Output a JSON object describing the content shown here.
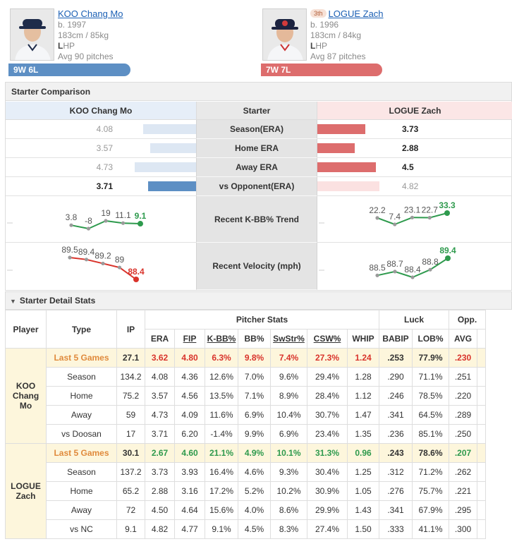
{
  "corner_link": "...)",
  "left_player": {
    "name": "KOO Chang Mo",
    "born": "b. 1997",
    "body": "183cm / 85kg",
    "hand_bold": "L",
    "hand_rest": "HP",
    "avg_pitches": "Avg 90 pitches",
    "record": "9W 6L",
    "color": "#5d8fc4"
  },
  "right_player": {
    "rank": "3th",
    "name": "LOGUE Zach",
    "born": "b. 1996",
    "body": "183cm / 84kg",
    "hand_bold": "L",
    "hand_rest": "HP",
    "avg_pitches": "Avg 87 pitches",
    "record": "7W 7L",
    "color": "#dd6d6d"
  },
  "comparison": {
    "title": "Starter Comparison",
    "left_header": "KOO Chang Mo",
    "mid_header": "Starter",
    "right_header": "LOGUE Zach",
    "rows": [
      {
        "label": "Season(ERA)",
        "left": "4.08",
        "right": "3.73",
        "left_v": 4.08,
        "right_v": 3.73,
        "winner": "right"
      },
      {
        "label": "Home ERA",
        "left": "3.57",
        "right": "2.88",
        "left_v": 3.57,
        "right_v": 2.88,
        "winner": "right"
      },
      {
        "label": "Away ERA",
        "left": "4.73",
        "right": "4.5",
        "left_v": 4.73,
        "right_v": 4.5,
        "winner": "right"
      },
      {
        "label": "vs Opponent(ERA)",
        "left": "3.71",
        "right": "4.82",
        "left_v": 3.71,
        "right_v": 4.82,
        "winner": "left"
      }
    ],
    "kbb_label": "Recent K-BB% Trend",
    "velo_label": "Recent Velocity (mph)"
  },
  "chart_data": [
    {
      "type": "line",
      "name": "KOO K-BB% trend",
      "x": [
        1,
        2,
        3,
        4,
        5
      ],
      "values": [
        3.8,
        -8,
        19,
        11.1,
        9.1
      ],
      "labels": [
        "3.8",
        "-8",
        "19",
        "11.1",
        "9.1"
      ]
    },
    {
      "type": "line",
      "name": "LOGUE K-BB% trend",
      "x": [
        1,
        2,
        3,
        4,
        5
      ],
      "values": [
        22.2,
        7.4,
        23.1,
        22.7,
        33.3
      ],
      "labels": [
        "22.2",
        "7.4",
        "23.1",
        "22.7",
        "33.3"
      ]
    },
    {
      "type": "line",
      "name": "KOO velocity",
      "x": [
        1,
        2,
        3,
        4,
        5
      ],
      "values": [
        89.5,
        89.4,
        89.2,
        89,
        88.4
      ],
      "labels": [
        "89.5",
        "89.4",
        "89.2",
        "89",
        "88.4"
      ]
    },
    {
      "type": "line",
      "name": "LOGUE velocity",
      "x": [
        1,
        2,
        3,
        4,
        5
      ],
      "values": [
        88.5,
        88.7,
        88.4,
        88.8,
        89.4
      ],
      "labels": [
        "88.5",
        "88.7",
        "88.4",
        "88.8",
        "89.4"
      ]
    }
  ],
  "detail": {
    "title": "Starter Detail Stats",
    "headers": {
      "player": "Player",
      "type": "Type",
      "ip": "IP",
      "group_pitcher": "Pitcher Stats",
      "group_luck": "Luck",
      "group_opp": "Opp.",
      "era": "ERA",
      "fip": "FIP",
      "kbb": "K-BB%",
      "bb": "BB%",
      "swstr": "SwStr%",
      "csw": "CSW%",
      "whip": "WHIP",
      "babip": "BABIP",
      "lob": "LOB%",
      "avg": "AVG"
    },
    "koo_label_1": "KOO",
    "koo_label_2": "Chang",
    "koo_label_3": "Mo",
    "logue_label_1": "LOGUE",
    "logue_label_2": "Zach",
    "koo_rows": [
      {
        "type": "Last 5 Games",
        "ip": "27.1",
        "era": "3.62",
        "fip": "4.80",
        "kbb": "6.3%",
        "bb": "9.8%",
        "swstr": "7.4%",
        "csw": "27.3%",
        "whip": "1.24",
        "babip": ".253",
        "lob": "77.9%",
        "avg": ".230"
      },
      {
        "type": "Season",
        "ip": "134.2",
        "era": "4.08",
        "fip": "4.36",
        "kbb": "12.6%",
        "bb": "7.0%",
        "swstr": "9.6%",
        "csw": "29.4%",
        "whip": "1.28",
        "babip": ".290",
        "lob": "71.1%",
        "avg": ".251"
      },
      {
        "type": "Home",
        "ip": "75.2",
        "era": "3.57",
        "fip": "4.56",
        "kbb": "13.5%",
        "bb": "7.1%",
        "swstr": "8.9%",
        "csw": "28.4%",
        "whip": "1.12",
        "babip": ".246",
        "lob": "78.5%",
        "avg": ".220"
      },
      {
        "type": "Away",
        "ip": "59",
        "era": "4.73",
        "fip": "4.09",
        "kbb": "11.6%",
        "bb": "6.9%",
        "swstr": "10.4%",
        "csw": "30.7%",
        "whip": "1.47",
        "babip": ".341",
        "lob": "64.5%",
        "avg": ".289"
      },
      {
        "type": "vs Doosan",
        "ip": "17",
        "era": "3.71",
        "fip": "6.20",
        "kbb": "-1.4%",
        "bb": "9.9%",
        "swstr": "6.9%",
        "csw": "23.4%",
        "whip": "1.35",
        "babip": ".236",
        "lob": "85.1%",
        "avg": ".250"
      }
    ],
    "logue_rows": [
      {
        "type": "Last 5 Games",
        "ip": "30.1",
        "era": "2.67",
        "fip": "4.60",
        "kbb": "21.1%",
        "bb": "4.9%",
        "swstr": "10.1%",
        "csw": "31.3%",
        "whip": "0.96",
        "babip": ".243",
        "lob": "78.6%",
        "avg": ".207"
      },
      {
        "type": "Season",
        "ip": "137.2",
        "era": "3.73",
        "fip": "3.93",
        "kbb": "16.4%",
        "bb": "4.6%",
        "swstr": "9.3%",
        "csw": "30.4%",
        "whip": "1.25",
        "babip": ".312",
        "lob": "71.2%",
        "avg": ".262"
      },
      {
        "type": "Home",
        "ip": "65.2",
        "era": "2.88",
        "fip": "3.16",
        "kbb": "17.2%",
        "bb": "5.2%",
        "swstr": "10.2%",
        "csw": "30.9%",
        "whip": "1.05",
        "babip": ".276",
        "lob": "75.7%",
        "avg": ".221"
      },
      {
        "type": "Away",
        "ip": "72",
        "era": "4.50",
        "fip": "4.64",
        "kbb": "15.6%",
        "bb": "4.0%",
        "swstr": "8.6%",
        "csw": "29.9%",
        "whip": "1.43",
        "babip": ".341",
        "lob": "67.9%",
        "avg": ".295"
      },
      {
        "type": "vs NC",
        "ip": "9.1",
        "era": "4.82",
        "fip": "4.77",
        "kbb": "9.1%",
        "bb": "4.5%",
        "swstr": "8.3%",
        "csw": "27.4%",
        "whip": "1.50",
        "babip": ".333",
        "lob": "41.1%",
        "avg": ".300"
      }
    ]
  }
}
